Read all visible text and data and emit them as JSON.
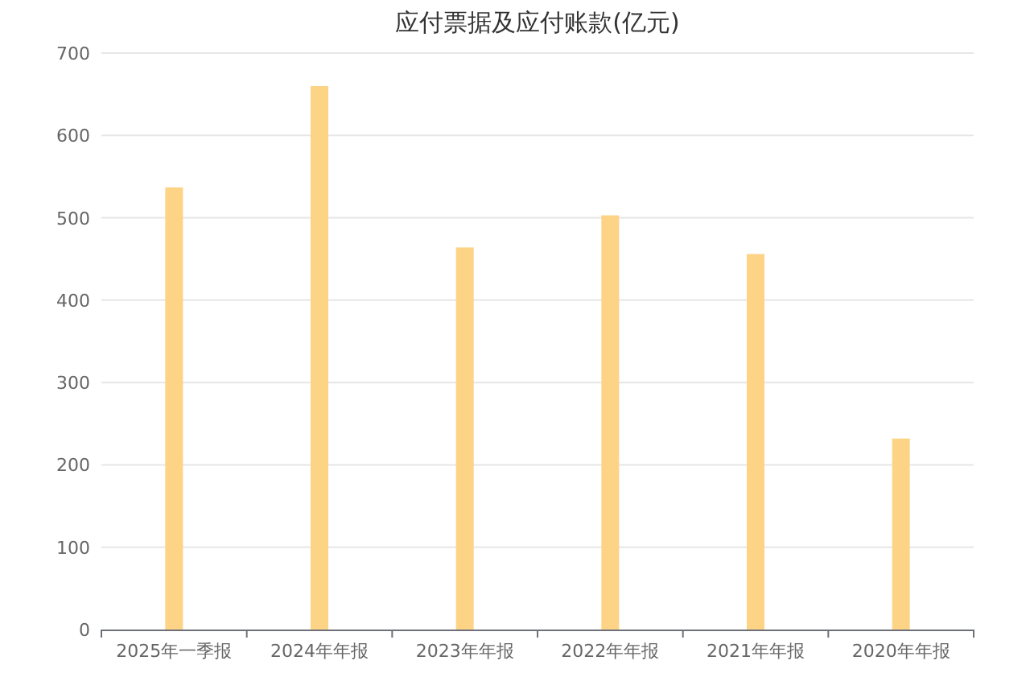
{
  "chart_data": {
    "type": "bar",
    "title": "应付票据及应付账款(亿元)",
    "categories": [
      "2025年一季报",
      "2024年年报",
      "2023年年报",
      "2022年年报",
      "2021年年报",
      "2020年年报"
    ],
    "values": [
      537,
      660,
      464,
      503,
      456,
      232
    ],
    "color": "#fdd386",
    "ylim": [
      0,
      700
    ],
    "yticks": [
      0,
      100,
      200,
      300,
      400,
      500,
      600,
      700
    ],
    "grid": "y"
  }
}
